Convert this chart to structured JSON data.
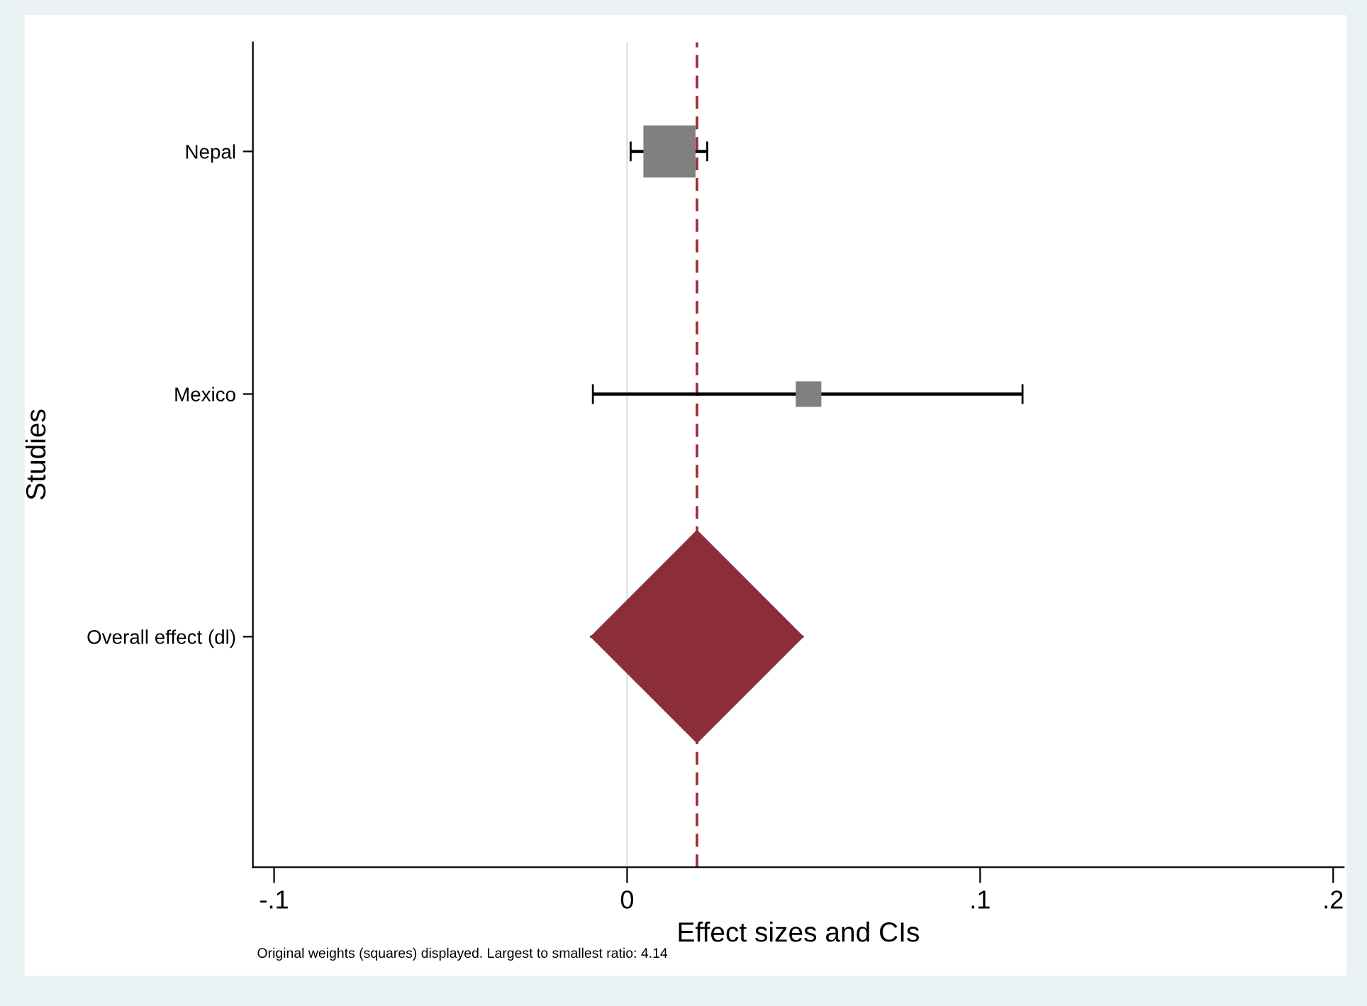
{
  "chart_data": {
    "type": "bubble",
    "orientation": "horizontal",
    "categories": [
      "Nepal",
      "Mexico",
      "Overall effect (dl)"
    ],
    "xlabel": "Effect sizes and CIs",
    "ylabel": "Studies",
    "series": [
      {
        "marker": "square",
        "color": "#808080",
        "values": [
          0.012,
          0.0514,
          null
        ],
        "sizes": [
          1,
          0.24,
          null
        ],
        "errors": [
          [
            0.001,
            0.0227
          ],
          [
            -0.0097,
            0.112
          ],
          null
        ]
      },
      {
        "type": "scatter",
        "marker": "diamond",
        "color": "#8b2e3a",
        "values": [
          null,
          null,
          0.0198
        ],
        "errors": [
          null,
          null,
          [
            -0.0105,
            0.05
          ]
        ]
      }
    ],
    "xlim": [
      -0.106,
      0.203
    ],
    "xticks": [
      {
        "value": -0.1,
        "label": "-.1"
      },
      0,
      {
        "value": 0.1,
        "label": ".1"
      },
      {
        "value": 0.2,
        "label": ".2"
      }
    ],
    "ref_lines": [
      {
        "axis": "x",
        "value": 0,
        "color": "#dddddd",
        "line_style": "solid"
      },
      {
        "axis": "x",
        "value": 0.0198,
        "color": "#9b2c35",
        "line_style": "dashed"
      }
    ],
    "grid": false,
    "annotations": [
      "Original weights (squares) displayed. Largest to smallest ratio: 4.14"
    ]
  }
}
